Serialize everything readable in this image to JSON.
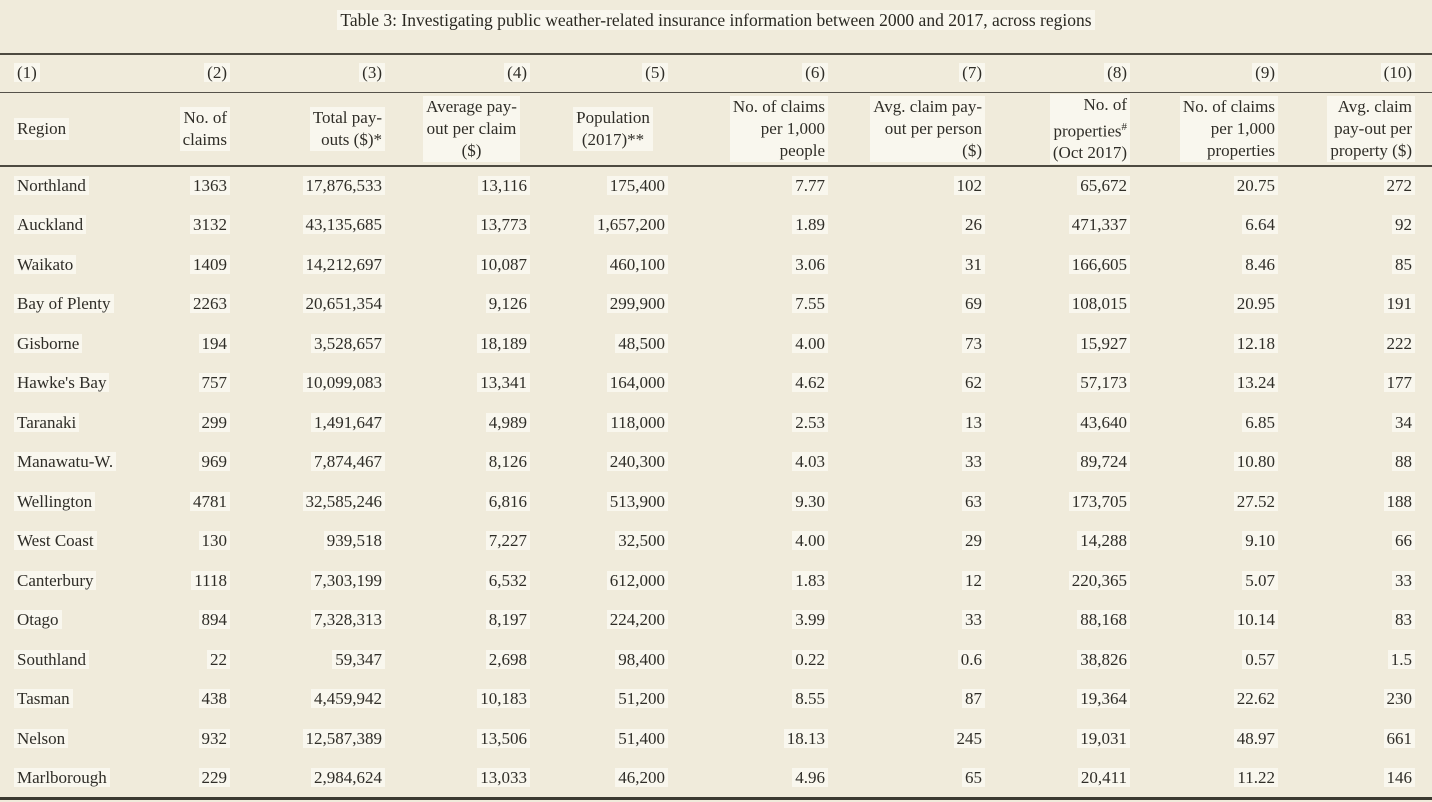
{
  "title": "Table 3: Investigating public weather-related insurance information between 2000 and 2017, across regions",
  "colors": {
    "page_background": "#f0ebdb",
    "text": "#2f2d27",
    "rule": "#4d4a40",
    "text_highlight": "#f9f7ee"
  },
  "columns": [
    {
      "num": "(1)",
      "label": "Region"
    },
    {
      "num": "(2)",
      "label": "No. of\nclaims"
    },
    {
      "num": "(3)",
      "label": "Total pay-\nouts ($)*"
    },
    {
      "num": "(4)",
      "label": "Average pay-\nout per claim\n($)"
    },
    {
      "num": "(5)",
      "label": "Population\n(2017)**"
    },
    {
      "num": "(6)",
      "label": "No. of claims\nper 1,000\npeople"
    },
    {
      "num": "(7)",
      "label": "Avg. claim pay-\nout per person\n($)"
    },
    {
      "num": "(8)",
      "label": "No. of\nproperties",
      "label_sup": "#",
      "label_after": "(Oct 2017)"
    },
    {
      "num": "(9)",
      "label": "No. of claims\nper 1,000\nproperties"
    },
    {
      "num": "(10)",
      "label": "Avg. claim\npay-out per\nproperty ($)"
    }
  ],
  "rows": [
    [
      "Northland",
      "1363",
      "17,876,533",
      "13,116",
      "175,400",
      "7.77",
      "102",
      "65,672",
      "20.75",
      "272"
    ],
    [
      "Auckland",
      "3132",
      "43,135,685",
      "13,773",
      "1,657,200",
      "1.89",
      "26",
      "471,337",
      "6.64",
      "92"
    ],
    [
      "Waikato",
      "1409",
      "14,212,697",
      "10,087",
      "460,100",
      "3.06",
      "31",
      "166,605",
      "8.46",
      "85"
    ],
    [
      "Bay of Plenty",
      "2263",
      "20,651,354",
      "9,126",
      "299,900",
      "7.55",
      "69",
      "108,015",
      "20.95",
      "191"
    ],
    [
      "Gisborne",
      "194",
      "3,528,657",
      "18,189",
      "48,500",
      "4.00",
      "73",
      "15,927",
      "12.18",
      "222"
    ],
    [
      "Hawke's Bay",
      "757",
      "10,099,083",
      "13,341",
      "164,000",
      "4.62",
      "62",
      "57,173",
      "13.24",
      "177"
    ],
    [
      "Taranaki",
      "299",
      "1,491,647",
      "4,989",
      "118,000",
      "2.53",
      "13",
      "43,640",
      "6.85",
      "34"
    ],
    [
      "Manawatu-W.",
      "969",
      "7,874,467",
      "8,126",
      "240,300",
      "4.03",
      "33",
      "89,724",
      "10.80",
      "88"
    ],
    [
      "Wellington",
      "4781",
      "32,585,246",
      "6,816",
      "513,900",
      "9.30",
      "63",
      "173,705",
      "27.52",
      "188"
    ],
    [
      "West Coast",
      "130",
      "939,518",
      "7,227",
      "32,500",
      "4.00",
      "29",
      "14,288",
      "9.10",
      "66"
    ],
    [
      "Canterbury",
      "1118",
      "7,303,199",
      "6,532",
      "612,000",
      "1.83",
      "12",
      "220,365",
      "5.07",
      "33"
    ],
    [
      "Otago",
      "894",
      "7,328,313",
      "8,197",
      "224,200",
      "3.99",
      "33",
      "88,168",
      "10.14",
      "83"
    ],
    [
      "Southland",
      "22",
      "59,347",
      "2,698",
      "98,400",
      "0.22",
      "0.6",
      "38,826",
      "0.57",
      "1.5"
    ],
    [
      "Tasman",
      "438",
      "4,459,942",
      "10,183",
      "51,200",
      "8.55",
      "87",
      "19,364",
      "22.62",
      "230"
    ],
    [
      "Nelson",
      "932",
      "12,587,389",
      "13,506",
      "51,400",
      "18.13",
      "245",
      "19,031",
      "48.97",
      "661"
    ],
    [
      "Marlborough",
      "229",
      "2,984,624",
      "13,033",
      "46,200",
      "4.96",
      "65",
      "20,411",
      "11.22",
      "146"
    ]
  ]
}
